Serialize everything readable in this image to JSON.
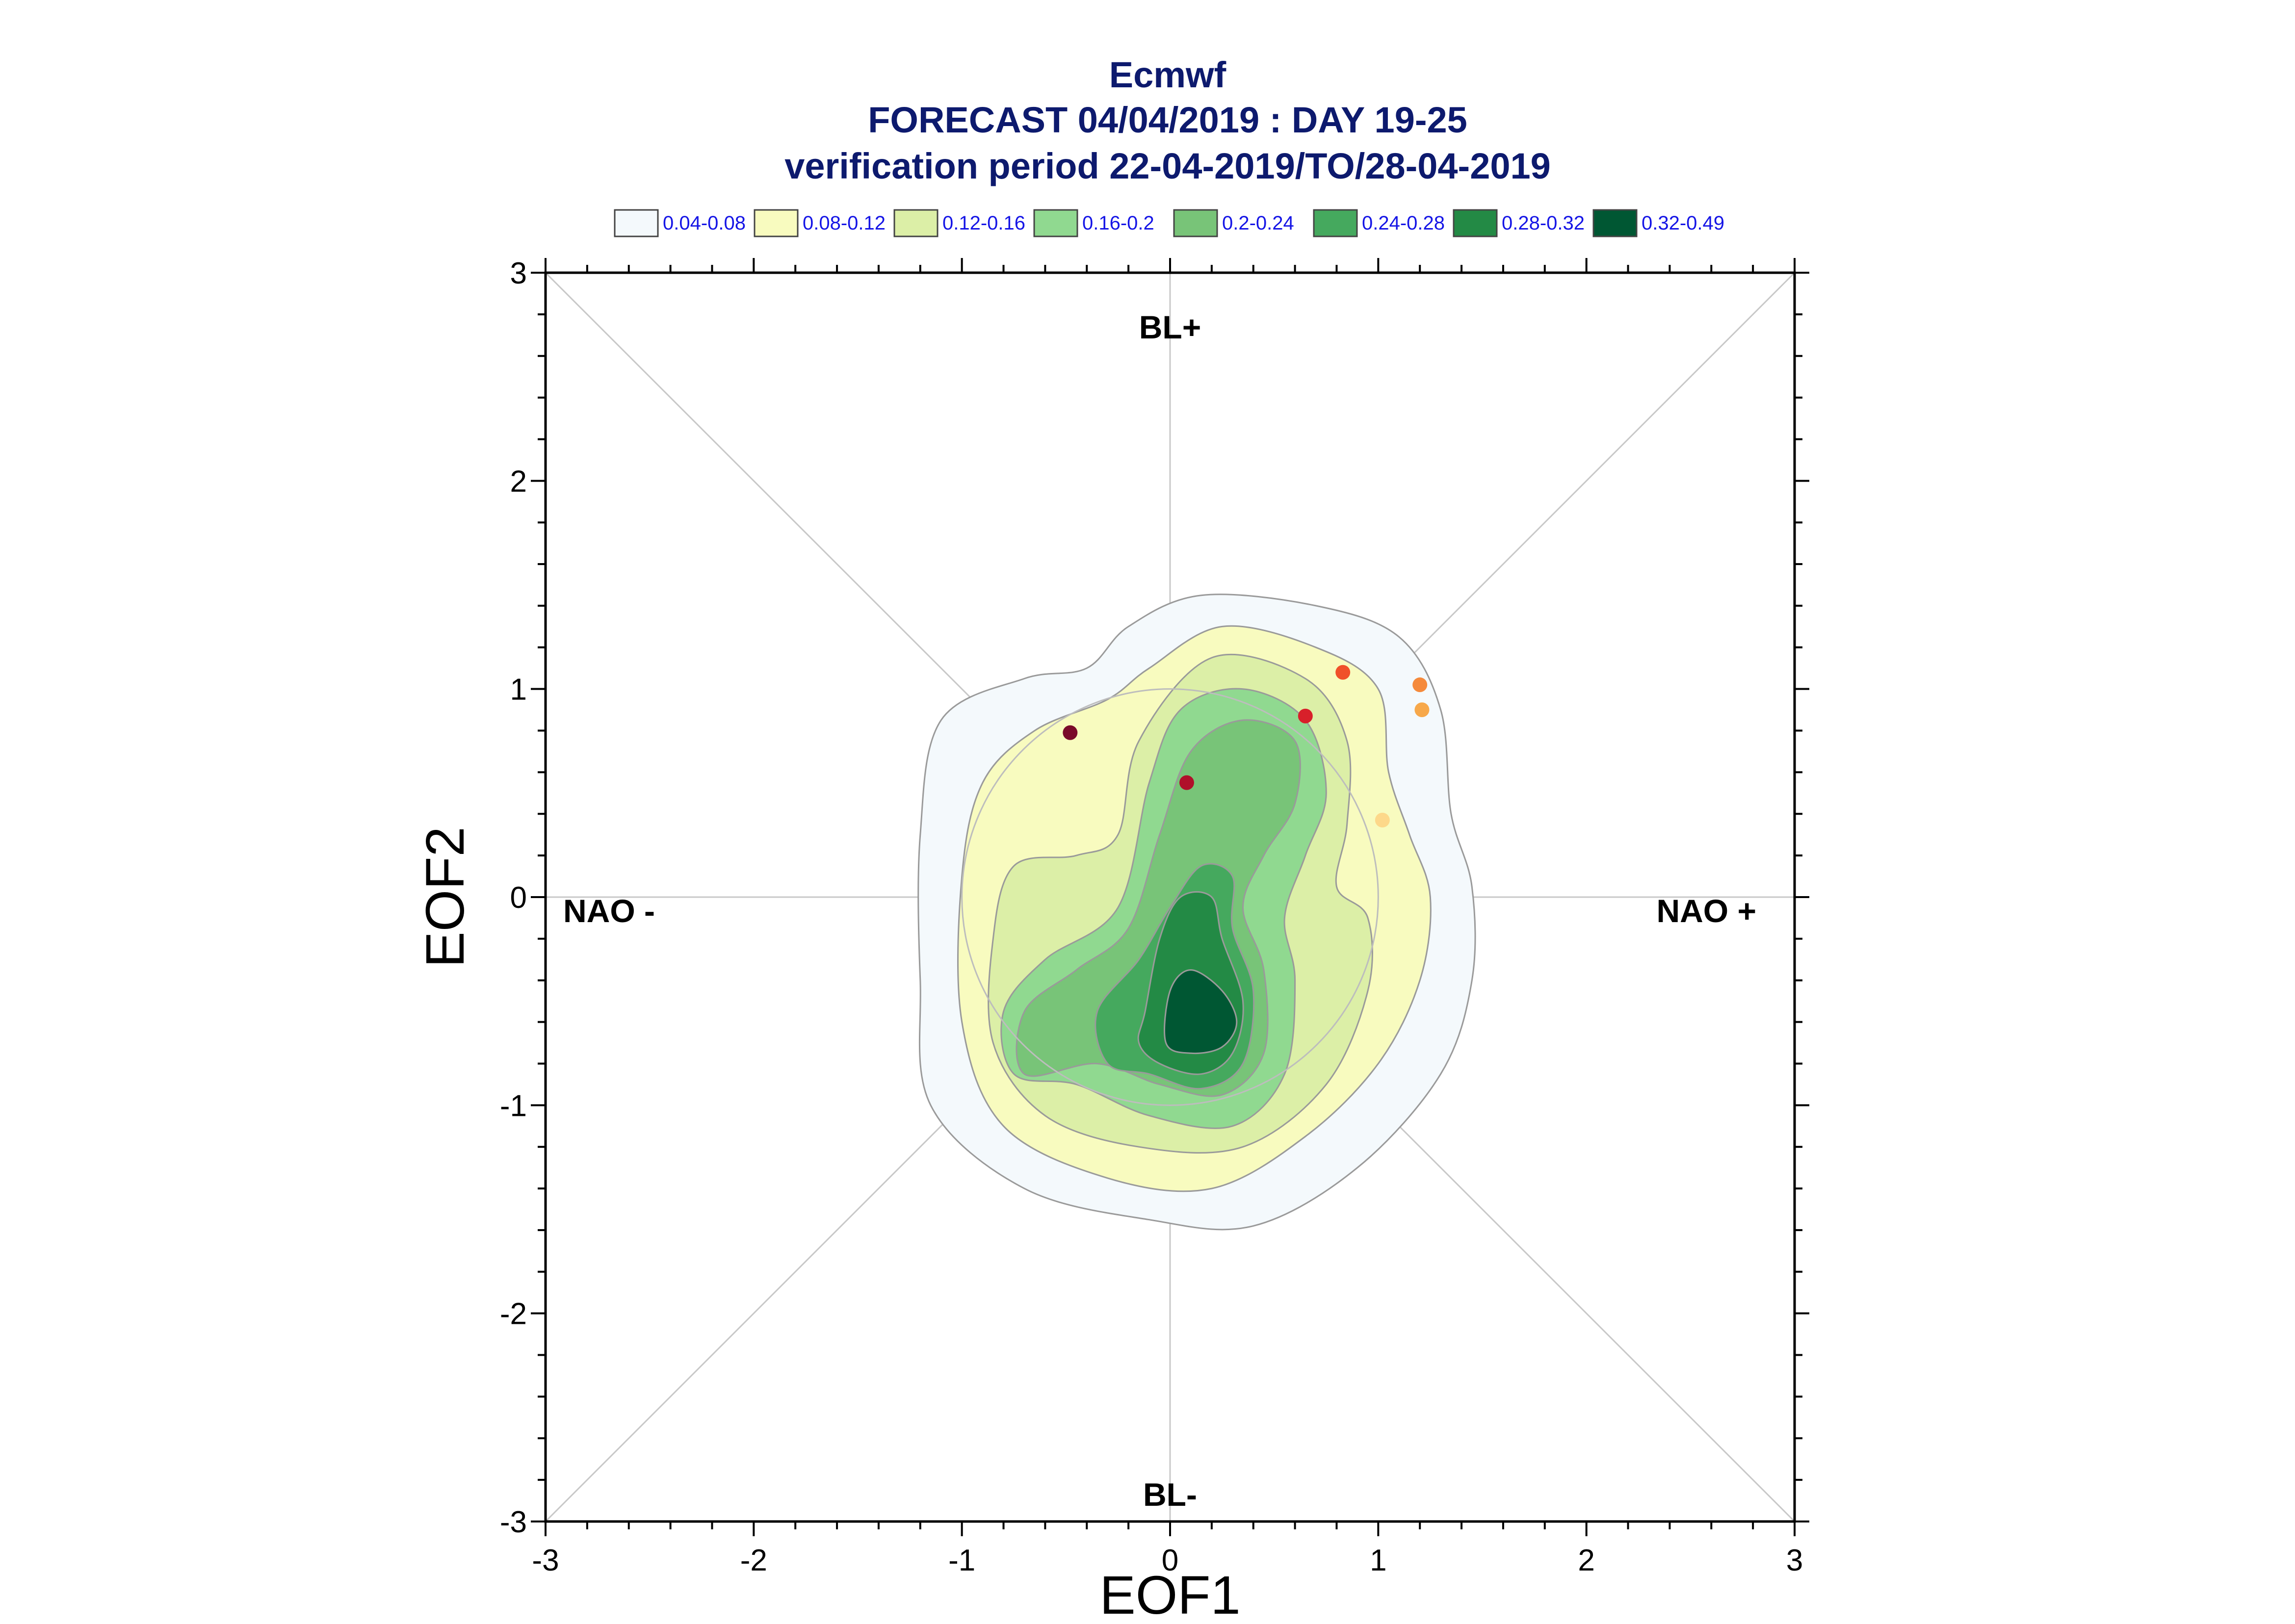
{
  "chart_data": {
    "type": "contour",
    "title_lines": [
      "Ecmwf",
      "FORECAST 04/04/2019 : DAY 19-25",
      "verification period 22-04-2019/TO/28-04-2019"
    ],
    "xlabel": "EOF1",
    "ylabel": "EOF2",
    "xlim": [
      -3,
      3
    ],
    "ylim": [
      -3,
      3
    ],
    "xticks": [
      -3,
      -2,
      -1,
      0,
      1,
      2,
      3
    ],
    "yticks": [
      -3,
      -2,
      -1,
      0,
      1,
      2,
      3
    ],
    "regime_labels": {
      "top": "BL+",
      "bottom": "BL-",
      "left": "NAO -",
      "right": "NAO +"
    },
    "legend": [
      {
        "label": "0.04-0.08",
        "color": "#f4f9fc"
      },
      {
        "label": "0.08-0.12",
        "color": "#f8fbbf"
      },
      {
        "label": "0.12-0.16",
        "color": "#dcefa7"
      },
      {
        "label": "0.16-0.2",
        "color": "#90d990"
      },
      {
        "label": "0.2-0.24",
        "color": "#78c478"
      },
      {
        "label": "0.24-0.28",
        "color": "#45a95e"
      },
      {
        "label": "0.28-0.32",
        "color": "#238a45"
      },
      {
        "label": "0.32-0.49",
        "color": "#005733"
      }
    ],
    "contours": [
      {
        "level": "0.04-0.08",
        "color": "#f4f9fc",
        "points": [
          [
            -1.2,
            0.3
          ],
          [
            -1.1,
            0.85
          ],
          [
            -0.7,
            1.05
          ],
          [
            -0.4,
            1.1
          ],
          [
            -0.2,
            1.3
          ],
          [
            0.15,
            1.45
          ],
          [
            0.7,
            1.4
          ],
          [
            1.1,
            1.25
          ],
          [
            1.3,
            0.9
          ],
          [
            1.35,
            0.4
          ],
          [
            1.45,
            0.05
          ],
          [
            1.45,
            -0.4
          ],
          [
            1.3,
            -0.85
          ],
          [
            0.9,
            -1.3
          ],
          [
            0.4,
            -1.58
          ],
          [
            -0.1,
            -1.55
          ],
          [
            -0.7,
            -1.4
          ],
          [
            -1.15,
            -1.0
          ],
          [
            -1.2,
            -0.4
          ]
        ]
      },
      {
        "level": "0.08-0.12",
        "color": "#f8fbbf",
        "points": [
          [
            -1.0,
            0.1
          ],
          [
            -0.9,
            0.55
          ],
          [
            -0.65,
            0.8
          ],
          [
            -0.3,
            0.95
          ],
          [
            -0.1,
            1.1
          ],
          [
            0.25,
            1.3
          ],
          [
            0.7,
            1.2
          ],
          [
            1.0,
            1.0
          ],
          [
            1.05,
            0.6
          ],
          [
            1.15,
            0.3
          ],
          [
            1.25,
            0.0
          ],
          [
            1.2,
            -0.4
          ],
          [
            1.0,
            -0.8
          ],
          [
            0.65,
            -1.15
          ],
          [
            0.2,
            -1.4
          ],
          [
            -0.3,
            -1.35
          ],
          [
            -0.8,
            -1.1
          ],
          [
            -1.0,
            -0.6
          ]
        ]
      },
      {
        "level": "0.12-0.16",
        "color": "#dcefa7",
        "points": [
          [
            -0.85,
            -0.2
          ],
          [
            -0.75,
            0.15
          ],
          [
            -0.45,
            0.2
          ],
          [
            -0.25,
            0.3
          ],
          [
            -0.15,
            0.75
          ],
          [
            0.2,
            1.15
          ],
          [
            0.65,
            1.05
          ],
          [
            0.85,
            0.75
          ],
          [
            0.85,
            0.35
          ],
          [
            0.8,
            0.05
          ],
          [
            0.95,
            -0.1
          ],
          [
            0.95,
            -0.45
          ],
          [
            0.75,
            -0.9
          ],
          [
            0.35,
            -1.2
          ],
          [
            -0.15,
            -1.2
          ],
          [
            -0.6,
            -1.05
          ],
          [
            -0.85,
            -0.7
          ]
        ]
      },
      {
        "level": "0.16-0.2",
        "color": "#90d990",
        "points": [
          [
            -0.8,
            -0.55
          ],
          [
            -0.6,
            -0.3
          ],
          [
            -0.25,
            -0.05
          ],
          [
            -0.1,
            0.55
          ],
          [
            0.05,
            0.9
          ],
          [
            0.35,
            1.0
          ],
          [
            0.65,
            0.85
          ],
          [
            0.75,
            0.5
          ],
          [
            0.65,
            0.2
          ],
          [
            0.55,
            -0.1
          ],
          [
            0.6,
            -0.4
          ],
          [
            0.55,
            -0.85
          ],
          [
            0.3,
            -1.1
          ],
          [
            -0.1,
            -1.05
          ],
          [
            -0.45,
            -0.9
          ],
          [
            -0.75,
            -0.85
          ]
        ]
      },
      {
        "level": "0.2-0.24",
        "color": "#78c478",
        "points": [
          [
            -0.7,
            -0.55
          ],
          [
            -0.45,
            -0.35
          ],
          [
            -0.2,
            -0.15
          ],
          [
            -0.05,
            0.3
          ],
          [
            0.1,
            0.7
          ],
          [
            0.35,
            0.85
          ],
          [
            0.6,
            0.75
          ],
          [
            0.6,
            0.45
          ],
          [
            0.45,
            0.2
          ],
          [
            0.35,
            -0.05
          ],
          [
            0.45,
            -0.35
          ],
          [
            0.45,
            -0.75
          ],
          [
            0.25,
            -0.95
          ],
          [
            -0.05,
            -0.9
          ],
          [
            -0.35,
            -0.8
          ],
          [
            -0.7,
            -0.85
          ]
        ]
      },
      {
        "level": "0.24-0.28",
        "color": "#45a95e",
        "points": [
          [
            -0.35,
            -0.55
          ],
          [
            -0.15,
            -0.3
          ],
          [
            0.0,
            -0.05
          ],
          [
            0.15,
            0.15
          ],
          [
            0.3,
            0.1
          ],
          [
            0.3,
            -0.15
          ],
          [
            0.4,
            -0.45
          ],
          [
            0.35,
            -0.8
          ],
          [
            0.15,
            -0.92
          ],
          [
            -0.1,
            -0.85
          ],
          [
            -0.3,
            -0.8
          ]
        ]
      },
      {
        "level": "0.28-0.32",
        "color": "#238a45",
        "points": [
          [
            -0.12,
            -0.55
          ],
          [
            -0.05,
            -0.2
          ],
          [
            0.05,
            0.0
          ],
          [
            0.2,
            0.0
          ],
          [
            0.25,
            -0.2
          ],
          [
            0.35,
            -0.5
          ],
          [
            0.3,
            -0.75
          ],
          [
            0.15,
            -0.85
          ],
          [
            -0.05,
            -0.8
          ],
          [
            -0.15,
            -0.7
          ]
        ]
      },
      {
        "level": "0.32-0.49",
        "color": "#005733",
        "points": [
          [
            0.0,
            -0.45
          ],
          [
            0.1,
            -0.35
          ],
          [
            0.25,
            -0.45
          ],
          [
            0.32,
            -0.6
          ],
          [
            0.25,
            -0.72
          ],
          [
            0.1,
            -0.75
          ],
          [
            -0.02,
            -0.7
          ]
        ]
      }
    ],
    "points": [
      {
        "x": -0.48,
        "y": 0.79,
        "color": "#7a0a2a"
      },
      {
        "x": 0.08,
        "y": 0.55,
        "color": "#b0102a"
      },
      {
        "x": 0.65,
        "y": 0.87,
        "color": "#d8202a"
      },
      {
        "x": 0.83,
        "y": 1.08,
        "color": "#f0502a"
      },
      {
        "x": 1.2,
        "y": 1.02,
        "color": "#f58a3c"
      },
      {
        "x": 1.21,
        "y": 0.9,
        "color": "#f7a84a"
      },
      {
        "x": 1.02,
        "y": 0.37,
        "color": "#fdd88a"
      }
    ],
    "reference_circle_radius": 1,
    "grid": false
  }
}
